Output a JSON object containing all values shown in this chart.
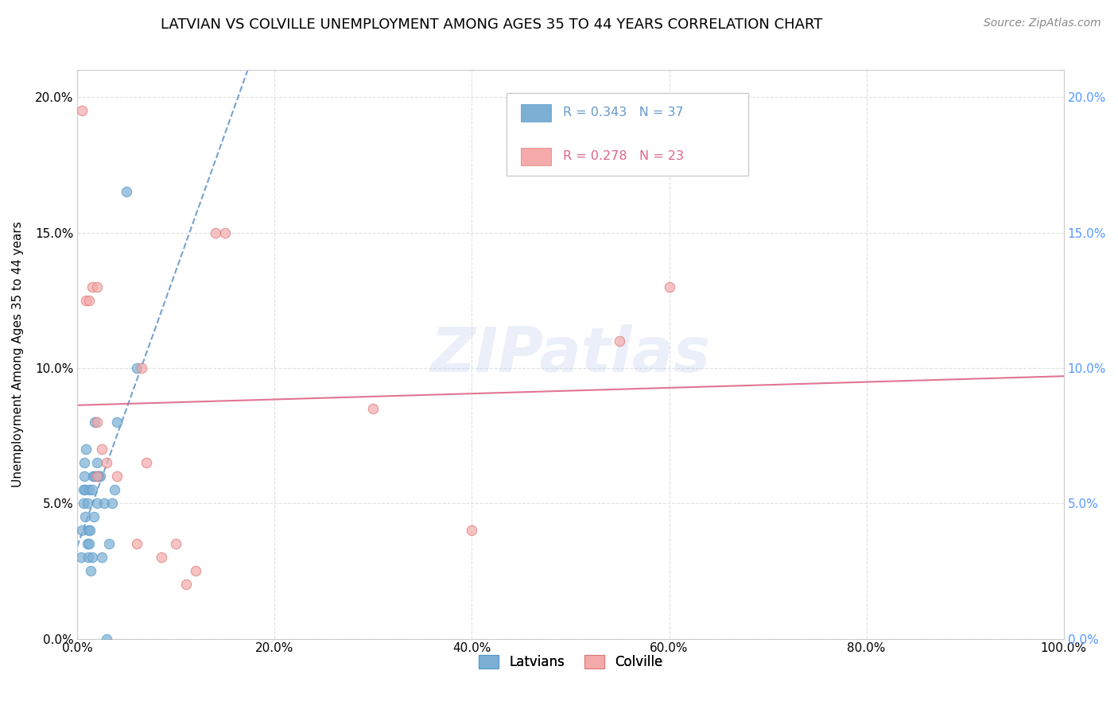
{
  "title": "LATVIAN VS COLVILLE UNEMPLOYMENT AMONG AGES 35 TO 44 YEARS CORRELATION CHART",
  "source_text": "Source: ZipAtlas.com",
  "xlabel": "",
  "ylabel": "Unemployment Among Ages 35 to 44 years",
  "xlim": [
    0.0,
    1.0
  ],
  "ylim": [
    0.0,
    0.21
  ],
  "x_tick_labels": [
    "0.0%",
    "20.0%",
    "40.0%",
    "60.0%",
    "80.0%",
    "100.0%"
  ],
  "x_ticks": [
    0.0,
    0.2,
    0.4,
    0.6,
    0.8,
    1.0
  ],
  "y_tick_labels": [
    "0.0%",
    "5.0%",
    "10.0%",
    "15.0%",
    "20.0%"
  ],
  "y_ticks": [
    0.0,
    0.05,
    0.1,
    0.15,
    0.2
  ],
  "latvian_color": "#7BAFD4",
  "latvian_edge_color": "#5599CC",
  "colville_color": "#F4AAAA",
  "colville_edge_color": "#DD7777",
  "latvian_R": 0.343,
  "latvian_N": 37,
  "colville_R": 0.278,
  "colville_N": 23,
  "watermark": "ZIPatlas",
  "latvian_x": [
    0.004,
    0.005,
    0.006,
    0.006,
    0.007,
    0.007,
    0.008,
    0.008,
    0.009,
    0.01,
    0.01,
    0.011,
    0.011,
    0.012,
    0.012,
    0.013,
    0.014,
    0.015,
    0.015,
    0.016,
    0.017,
    0.018,
    0.018,
    0.02,
    0.02,
    0.021,
    0.022,
    0.023,
    0.025,
    0.027,
    0.03,
    0.032,
    0.035,
    0.038,
    0.04,
    0.05,
    0.06
  ],
  "latvian_y": [
    0.03,
    0.04,
    0.05,
    0.055,
    0.06,
    0.065,
    0.055,
    0.045,
    0.07,
    0.035,
    0.05,
    0.03,
    0.04,
    0.035,
    0.055,
    0.04,
    0.025,
    0.055,
    0.03,
    0.06,
    0.045,
    0.06,
    0.08,
    0.05,
    0.065,
    0.06,
    0.06,
    0.06,
    0.03,
    0.05,
    0.0,
    0.035,
    0.05,
    0.055,
    0.08,
    0.165,
    0.1
  ],
  "colville_x": [
    0.005,
    0.009,
    0.012,
    0.015,
    0.02,
    0.02,
    0.02,
    0.025,
    0.03,
    0.04,
    0.06,
    0.065,
    0.07,
    0.085,
    0.1,
    0.11,
    0.12,
    0.14,
    0.15,
    0.3,
    0.4,
    0.55,
    0.6
  ],
  "colville_y": [
    0.195,
    0.125,
    0.125,
    0.13,
    0.13,
    0.08,
    0.06,
    0.07,
    0.065,
    0.06,
    0.035,
    0.1,
    0.065,
    0.03,
    0.035,
    0.02,
    0.025,
    0.15,
    0.15,
    0.085,
    0.04,
    0.11,
    0.13
  ],
  "latvian_trendline_color": "#6699CC",
  "colville_trendline_color": "#DD6688",
  "background_color": "#FFFFFF",
  "grid_color": "#E0E0E0",
  "right_tick_color": "#5599FF"
}
